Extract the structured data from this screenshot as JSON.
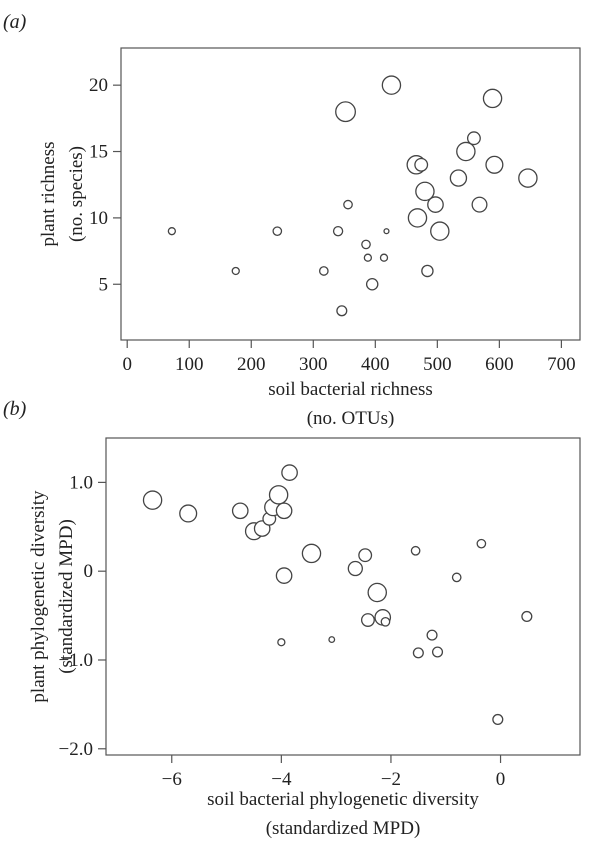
{
  "chart_data": [
    {
      "type": "scatter",
      "panel_label": "(a)",
      "xlabel": [
        "soil bacterial richness",
        "(no. OTUs)"
      ],
      "ylabel": [
        "plant richness",
        "(no. species)"
      ],
      "xlim": [
        -10,
        730
      ],
      "ylim": [
        0.8,
        22.8
      ],
      "xticks": [
        0,
        100,
        200,
        300,
        400,
        500,
        600,
        700
      ],
      "yticks": [
        5,
        10,
        15,
        20
      ],
      "xtick_labels": [
        "0",
        "100",
        "200",
        "300",
        "400",
        "500",
        "600",
        "700"
      ],
      "ytick_labels": [
        "5",
        "10",
        "15",
        "20"
      ],
      "grid": false,
      "points": [
        {
          "x": 72,
          "y": 9,
          "s": 1
        },
        {
          "x": 175,
          "y": 6,
          "s": 1
        },
        {
          "x": 242,
          "y": 9,
          "s": 1.2
        },
        {
          "x": 317,
          "y": 6,
          "s": 1.2
        },
        {
          "x": 340,
          "y": 9,
          "s": 1.3
        },
        {
          "x": 346,
          "y": 3,
          "s": 1.4
        },
        {
          "x": 352,
          "y": 18,
          "s": 2.8
        },
        {
          "x": 356,
          "y": 11,
          "s": 1.2
        },
        {
          "x": 385,
          "y": 8,
          "s": 1.2
        },
        {
          "x": 388,
          "y": 7,
          "s": 1
        },
        {
          "x": 395,
          "y": 5,
          "s": 1.6
        },
        {
          "x": 414,
          "y": 7,
          "s": 1
        },
        {
          "x": 418,
          "y": 9,
          "s": 0.7
        },
        {
          "x": 426,
          "y": 20,
          "s": 2.6
        },
        {
          "x": 466,
          "y": 14,
          "s": 2.6
        },
        {
          "x": 468,
          "y": 10,
          "s": 2.6
        },
        {
          "x": 474,
          "y": 14,
          "s": 1.8
        },
        {
          "x": 480,
          "y": 12,
          "s": 2.6
        },
        {
          "x": 484,
          "y": 6,
          "s": 1.6
        },
        {
          "x": 497,
          "y": 11,
          "s": 2.2
        },
        {
          "x": 504,
          "y": 9,
          "s": 2.6
        },
        {
          "x": 534,
          "y": 13,
          "s": 2.3
        },
        {
          "x": 546,
          "y": 15,
          "s": 2.6
        },
        {
          "x": 559,
          "y": 16,
          "s": 1.8
        },
        {
          "x": 568,
          "y": 11,
          "s": 2.1
        },
        {
          "x": 589,
          "y": 19,
          "s": 2.6
        },
        {
          "x": 592,
          "y": 14,
          "s": 2.4
        },
        {
          "x": 646,
          "y": 13,
          "s": 2.6
        }
      ]
    },
    {
      "type": "scatter",
      "panel_label": "(b)",
      "xlabel": [
        "soil bacterial phylogenetic diversity",
        "(standardized MPD)"
      ],
      "ylabel": [
        "plant phylogenetic diversity",
        "(standardized MPD)"
      ],
      "xlim": [
        -7.2,
        1.45
      ],
      "ylim": [
        -2.07,
        1.5
      ],
      "xticks": [
        -6,
        -4,
        -2,
        0
      ],
      "yticks": [
        1.0,
        0,
        -1.0,
        -2.0
      ],
      "xtick_labels": [
        "−6",
        "−4",
        "−2",
        "0"
      ],
      "ytick_labels": [
        "1.0",
        "0",
        "−1.0",
        "−2.0"
      ],
      "grid": false,
      "points": [
        {
          "x": -6.35,
          "y": 0.8,
          "s": 2.6
        },
        {
          "x": -5.7,
          "y": 0.65,
          "s": 2.4
        },
        {
          "x": -4.75,
          "y": 0.68,
          "s": 2.2
        },
        {
          "x": -4.5,
          "y": 0.45,
          "s": 2.4
        },
        {
          "x": -4.35,
          "y": 0.48,
          "s": 2.2
        },
        {
          "x": -4.22,
          "y": 0.59,
          "s": 1.8
        },
        {
          "x": -4.15,
          "y": 0.72,
          "s": 2.4
        },
        {
          "x": -4.05,
          "y": 0.86,
          "s": 2.6
        },
        {
          "x": -3.95,
          "y": 0.68,
          "s": 2.2
        },
        {
          "x": -3.85,
          "y": 1.11,
          "s": 2.2
        },
        {
          "x": -3.95,
          "y": -0.05,
          "s": 2.2
        },
        {
          "x": -4.0,
          "y": -0.8,
          "s": 1
        },
        {
          "x": -3.45,
          "y": 0.2,
          "s": 2.6
        },
        {
          "x": -3.08,
          "y": -0.77,
          "s": 0.8
        },
        {
          "x": -2.65,
          "y": 0.03,
          "s": 2.0
        },
        {
          "x": -2.47,
          "y": 0.18,
          "s": 1.8
        },
        {
          "x": -2.42,
          "y": -0.55,
          "s": 1.8
        },
        {
          "x": -2.25,
          "y": -0.24,
          "s": 2.6
        },
        {
          "x": -2.15,
          "y": -0.52,
          "s": 2.2
        },
        {
          "x": -2.1,
          "y": -0.57,
          "s": 1.2
        },
        {
          "x": -1.55,
          "y": 0.23,
          "s": 1.2
        },
        {
          "x": -1.5,
          "y": -0.92,
          "s": 1.4
        },
        {
          "x": -1.25,
          "y": -0.72,
          "s": 1.4
        },
        {
          "x": -1.15,
          "y": -0.91,
          "s": 1.4
        },
        {
          "x": -0.8,
          "y": -0.07,
          "s": 1.2
        },
        {
          "x": -0.35,
          "y": 0.31,
          "s": 1.2
        },
        {
          "x": -0.05,
          "y": -1.67,
          "s": 1.4
        },
        {
          "x": 0.48,
          "y": -0.51,
          "s": 1.4
        }
      ]
    }
  ]
}
